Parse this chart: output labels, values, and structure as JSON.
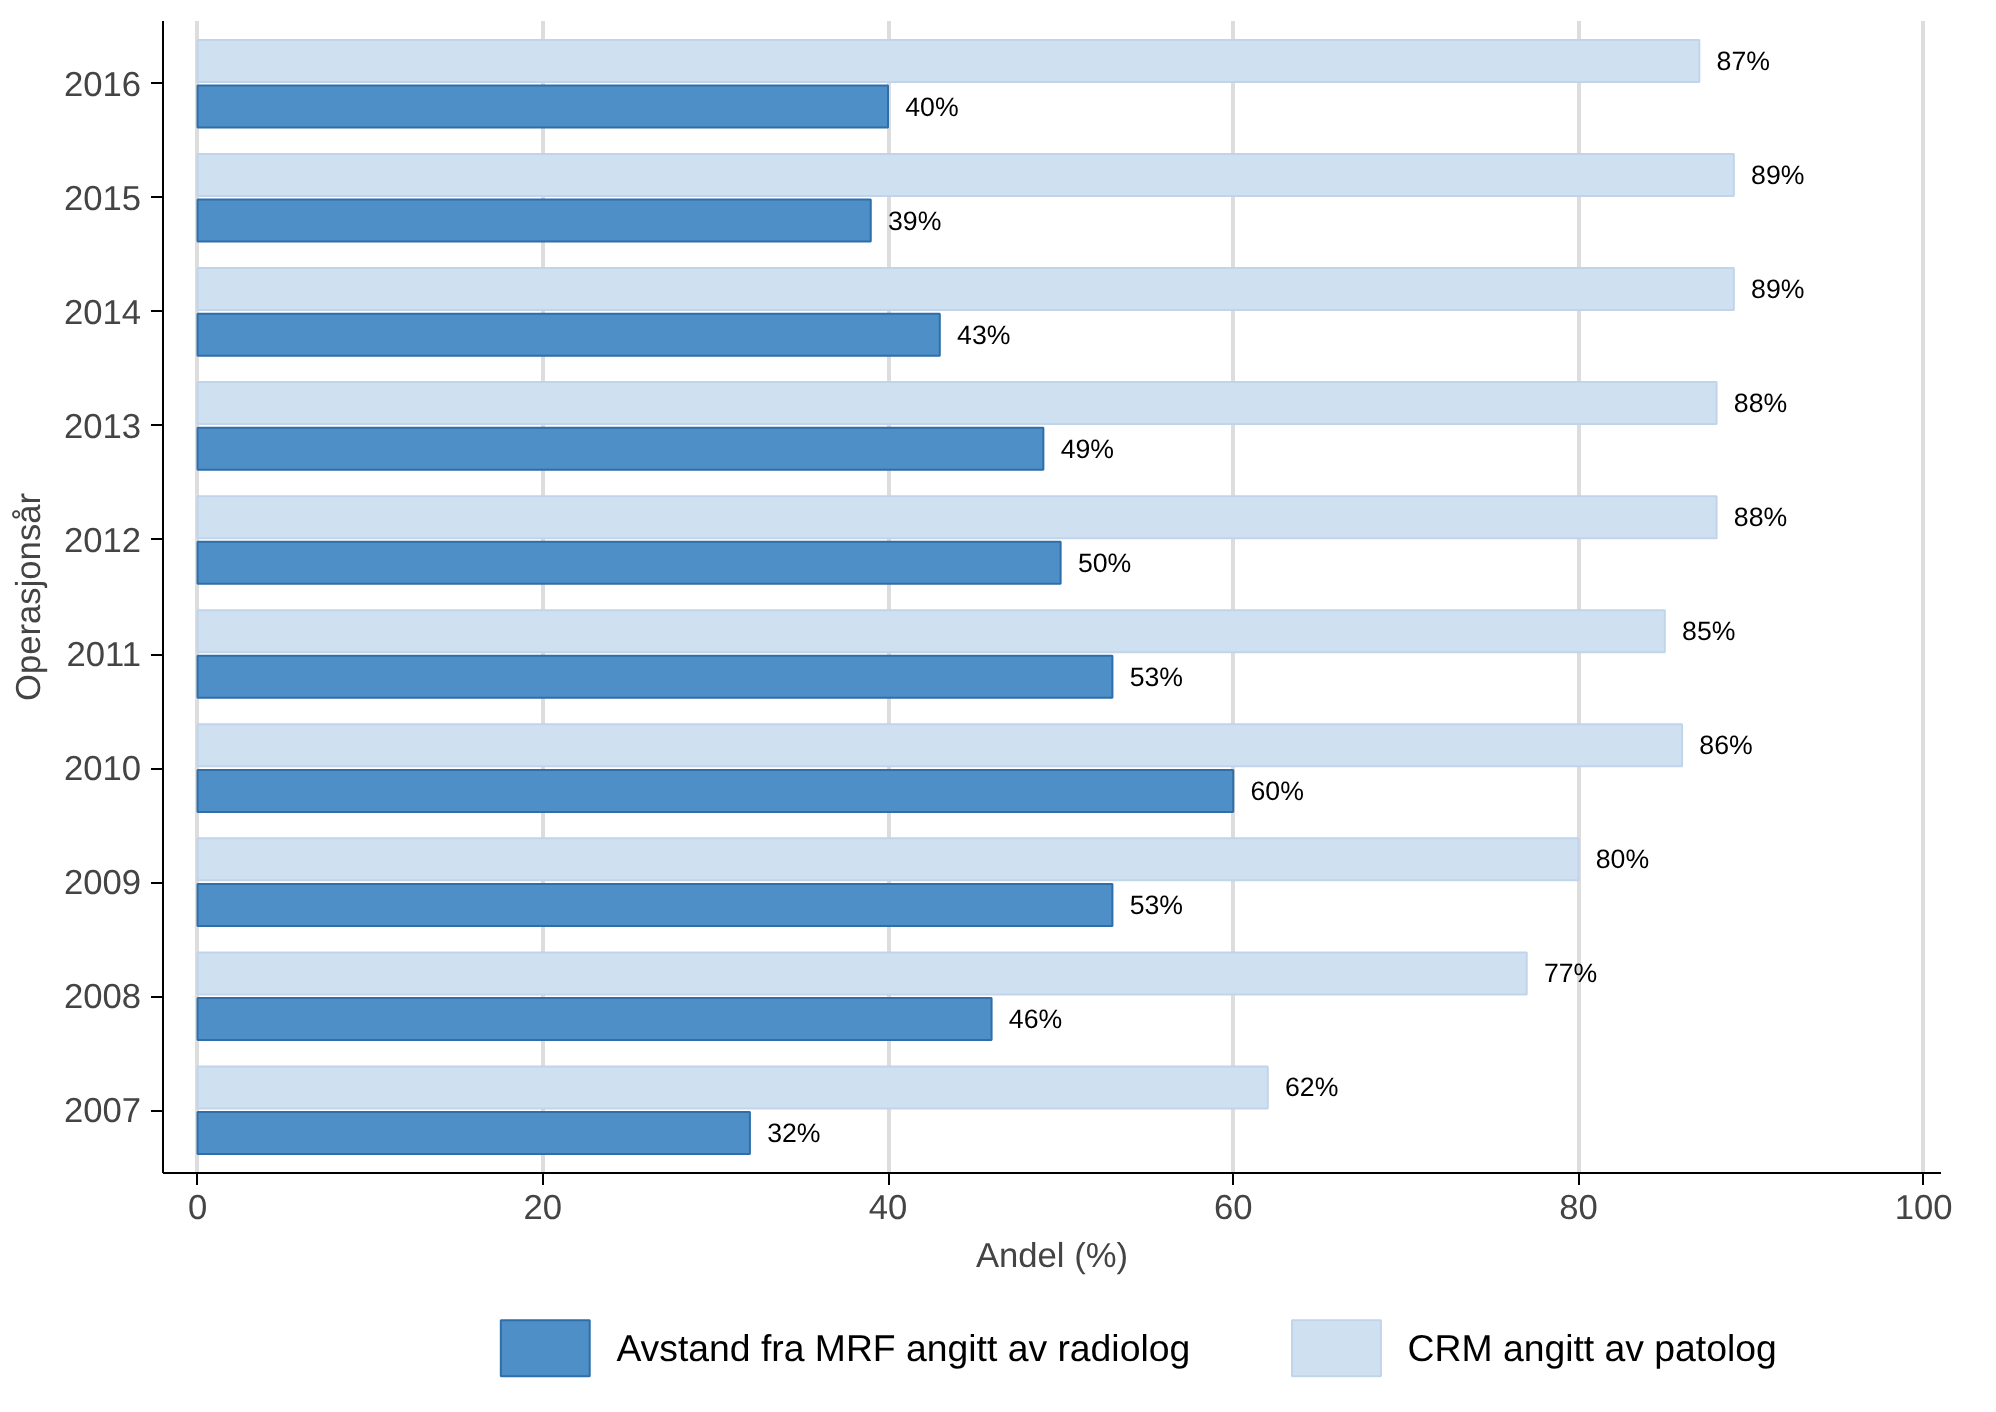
{
  "chart_data": {
    "type": "bar",
    "orientation": "horizontal",
    "xlabel": "Andel (%)",
    "ylabel": "Operasjonsår",
    "categories": [
      "2016",
      "2015",
      "2014",
      "2013",
      "2012",
      "2011",
      "2010",
      "2009",
      "2008",
      "2007"
    ],
    "series": [
      {
        "name": "Avstand fra MRF angitt av radiolog",
        "color": "#4f8fc8",
        "values": [
          40,
          39,
          43,
          49,
          50,
          53,
          60,
          53,
          46,
          32
        ],
        "value_labels": [
          "40%",
          "39%",
          "43%",
          "49%",
          "50%",
          "53%",
          "60%",
          "53%",
          "46%",
          "32%"
        ]
      },
      {
        "name": "CRM angitt av patolog",
        "color": "#cfe0f1",
        "values": [
          87,
          89,
          89,
          88,
          88,
          85,
          86,
          80,
          77,
          62
        ],
        "value_labels": [
          "87%",
          "89%",
          "89%",
          "88%",
          "88%",
          "85%",
          "86%",
          "80%",
          "77%",
          "62%"
        ]
      }
    ],
    "xlim": [
      -2,
      101
    ],
    "xticks": [
      0,
      20,
      40,
      60,
      80,
      100
    ],
    "grid": "x",
    "legend": "bottom"
  }
}
